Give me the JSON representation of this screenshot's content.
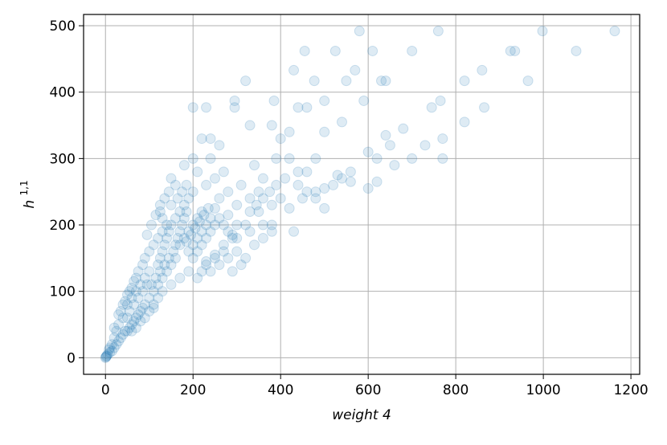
{
  "chart_data": {
    "type": "scatter",
    "title": "",
    "xlabel": "weight 4",
    "ylabel_base": "h",
    "ylabel_sup": "1,1",
    "xlim": [
      -50,
      1220
    ],
    "ylim": [
      -25,
      517
    ],
    "xticks": [
      0,
      200,
      400,
      600,
      800,
      1000,
      1200
    ],
    "yticks": [
      0,
      100,
      200,
      300,
      400,
      500
    ],
    "grid": true,
    "legend": "none",
    "marker_color": "#1f77b4",
    "marker_alpha": 0.15,
    "series": [
      {
        "points": [
          [
            760,
            492
          ],
          [
            998,
            492
          ],
          [
            1163,
            492
          ],
          [
            580,
            492
          ],
          [
            925,
            462
          ],
          [
            935,
            462
          ],
          [
            1075,
            462
          ],
          [
            610,
            462
          ],
          [
            700,
            462
          ],
          [
            525,
            462
          ],
          [
            455,
            462
          ],
          [
            320,
            417
          ],
          [
            477,
            417
          ],
          [
            550,
            417
          ],
          [
            630,
            417
          ],
          [
            640,
            417
          ],
          [
            820,
            417
          ],
          [
            965,
            417
          ],
          [
            430,
            433
          ],
          [
            570,
            433
          ],
          [
            860,
            433
          ],
          [
            200,
            377
          ],
          [
            230,
            377
          ],
          [
            385,
            387
          ],
          [
            440,
            377
          ],
          [
            460,
            377
          ],
          [
            500,
            387
          ],
          [
            590,
            387
          ],
          [
            745,
            377
          ],
          [
            765,
            387
          ],
          [
            865,
            377
          ],
          [
            295,
            387
          ],
          [
            295,
            377
          ],
          [
            330,
            350
          ],
          [
            380,
            350
          ],
          [
            500,
            340
          ],
          [
            540,
            355
          ],
          [
            640,
            335
          ],
          [
            680,
            345
          ],
          [
            730,
            320
          ],
          [
            770,
            330
          ],
          [
            820,
            355
          ],
          [
            770,
            300
          ],
          [
            600,
            310
          ],
          [
            620,
            300
          ],
          [
            560,
            280
          ],
          [
            530,
            275
          ],
          [
            500,
            255
          ],
          [
            480,
            250
          ],
          [
            700,
            300
          ],
          [
            660,
            290
          ],
          [
            650,
            320
          ],
          [
            450,
            240
          ],
          [
            420,
            225
          ],
          [
            430,
            190
          ],
          [
            380,
            190
          ],
          [
            500,
            225
          ],
          [
            600,
            255
          ],
          [
            620,
            265
          ],
          [
            360,
            200
          ],
          [
            330,
            190
          ],
          [
            300,
            160
          ],
          [
            280,
            150
          ],
          [
            260,
            140
          ],
          [
            240,
            130
          ],
          [
            350,
            220
          ],
          [
            320,
            200
          ],
          [
            300,
            180
          ],
          [
            270,
            170
          ],
          [
            250,
            155
          ],
          [
            230,
            145
          ],
          [
            400,
            240
          ],
          [
            380,
            230
          ],
          [
            350,
            250
          ],
          [
            330,
            240
          ],
          [
            300,
            230
          ],
          [
            280,
            215
          ],
          [
            390,
            300
          ],
          [
            360,
            270
          ],
          [
            340,
            290
          ],
          [
            310,
            260
          ],
          [
            280,
            250
          ],
          [
            260,
            240
          ],
          [
            420,
            300
          ],
          [
            440,
            280
          ],
          [
            460,
            280
          ],
          [
            480,
            300
          ],
          [
            400,
            330
          ],
          [
            420,
            340
          ],
          [
            240,
            330
          ],
          [
            220,
            330
          ],
          [
            200,
            300
          ],
          [
            180,
            290
          ],
          [
            160,
            260
          ],
          [
            150,
            270
          ],
          [
            240,
            300
          ],
          [
            260,
            320
          ],
          [
            270,
            280
          ],
          [
            250,
            270
          ],
          [
            230,
            260
          ],
          [
            210,
            280
          ],
          [
            200,
            250
          ],
          [
            190,
            240
          ],
          [
            180,
            230
          ],
          [
            170,
            220
          ],
          [
            160,
            210
          ],
          [
            150,
            200
          ],
          [
            220,
            220
          ],
          [
            210,
            210
          ],
          [
            200,
            200
          ],
          [
            190,
            190
          ],
          [
            180,
            180
          ],
          [
            170,
            170
          ],
          [
            240,
            210
          ],
          [
            230,
            200
          ],
          [
            220,
            190
          ],
          [
            210,
            180
          ],
          [
            200,
            170
          ],
          [
            190,
            160
          ],
          [
            160,
            150
          ],
          [
            150,
            140
          ],
          [
            140,
            130
          ],
          [
            130,
            120
          ],
          [
            120,
            110
          ],
          [
            110,
            100
          ],
          [
            140,
            200
          ],
          [
            130,
            190
          ],
          [
            120,
            180
          ],
          [
            110,
            170
          ],
          [
            100,
            160
          ],
          [
            90,
            150
          ],
          [
            145,
            250
          ],
          [
            135,
            240
          ],
          [
            125,
            230
          ],
          [
            115,
            215
          ],
          [
            105,
            200
          ],
          [
            95,
            185
          ],
          [
            100,
            130
          ],
          [
            90,
            120
          ],
          [
            80,
            110
          ],
          [
            70,
            100
          ],
          [
            60,
            90
          ],
          [
            50,
            80
          ],
          [
            85,
            140
          ],
          [
            75,
            130
          ],
          [
            65,
            115
          ],
          [
            55,
            100
          ],
          [
            45,
            85
          ],
          [
            35,
            70
          ],
          [
            100,
            90
          ],
          [
            90,
            80
          ],
          [
            80,
            70
          ],
          [
            70,
            60
          ],
          [
            60,
            50
          ],
          [
            50,
            40
          ],
          [
            120,
            90
          ],
          [
            110,
            80
          ],
          [
            130,
            100
          ],
          [
            150,
            110
          ],
          [
            170,
            120
          ],
          [
            190,
            130
          ],
          [
            40,
            60
          ],
          [
            30,
            50
          ],
          [
            25,
            40
          ],
          [
            20,
            30
          ],
          [
            15,
            20
          ],
          [
            10,
            15
          ],
          [
            40,
            35
          ],
          [
            30,
            25
          ],
          [
            25,
            20
          ],
          [
            20,
            15
          ],
          [
            15,
            10
          ],
          [
            10,
            8
          ],
          [
            5,
            5
          ],
          [
            3,
            3
          ],
          [
            2,
            2
          ],
          [
            1,
            1
          ],
          [
            0,
            0
          ],
          [
            8,
            12
          ],
          [
            60,
            40
          ],
          [
            70,
            45
          ],
          [
            80,
            55
          ],
          [
            90,
            60
          ],
          [
            100,
            70
          ],
          [
            110,
            75
          ],
          [
            50,
            60
          ],
          [
            55,
            70
          ],
          [
            65,
            80
          ],
          [
            75,
            90
          ],
          [
            85,
            100
          ],
          [
            95,
            110
          ],
          [
            120,
            140
          ],
          [
            125,
            150
          ],
          [
            130,
            160
          ],
          [
            135,
            170
          ],
          [
            140,
            180
          ],
          [
            145,
            190
          ],
          [
            160,
            170
          ],
          [
            165,
            180
          ],
          [
            170,
            190
          ],
          [
            175,
            200
          ],
          [
            180,
            210
          ],
          [
            185,
            220
          ],
          [
            200,
            150
          ],
          [
            210,
            160
          ],
          [
            220,
            170
          ],
          [
            230,
            180
          ],
          [
            240,
            190
          ],
          [
            250,
            200
          ],
          [
            210,
            120
          ],
          [
            220,
            130
          ],
          [
            230,
            140
          ],
          [
            250,
            150
          ],
          [
            270,
            160
          ],
          [
            290,
            180
          ],
          [
            320,
            150
          ],
          [
            340,
            170
          ],
          [
            360,
            180
          ],
          [
            380,
            200
          ],
          [
            310,
            140
          ],
          [
            290,
            130
          ],
          [
            235,
            225
          ],
          [
            225,
            215
          ],
          [
            215,
            205
          ],
          [
            205,
            195
          ],
          [
            195,
            185
          ],
          [
            185,
            175
          ],
          [
            155,
            160
          ],
          [
            145,
            150
          ],
          [
            135,
            140
          ],
          [
            125,
            130
          ],
          [
            115,
            120
          ],
          [
            105,
            110
          ],
          [
            70,
            120
          ],
          [
            60,
            105
          ],
          [
            50,
            95
          ],
          [
            40,
            80
          ],
          [
            30,
            65
          ],
          [
            20,
            45
          ],
          [
            35,
            30
          ],
          [
            45,
            40
          ],
          [
            55,
            45
          ],
          [
            65,
            55
          ],
          [
            75,
            65
          ],
          [
            85,
            75
          ],
          [
            130,
            210
          ],
          [
            125,
            220
          ],
          [
            150,
            230
          ],
          [
            165,
            240
          ],
          [
            175,
            250
          ],
          [
            185,
            260
          ],
          [
            250,
            225
          ],
          [
            260,
            210
          ],
          [
            270,
            200
          ],
          [
            280,
            190
          ],
          [
            290,
            185
          ],
          [
            300,
            200
          ],
          [
            330,
            220
          ],
          [
            345,
            230
          ],
          [
            360,
            240
          ],
          [
            375,
            250
          ],
          [
            390,
            260
          ],
          [
            410,
            270
          ],
          [
            440,
            260
          ],
          [
            460,
            250
          ],
          [
            480,
            240
          ],
          [
            520,
            260
          ],
          [
            540,
            270
          ],
          [
            560,
            265
          ]
        ]
      }
    ]
  }
}
